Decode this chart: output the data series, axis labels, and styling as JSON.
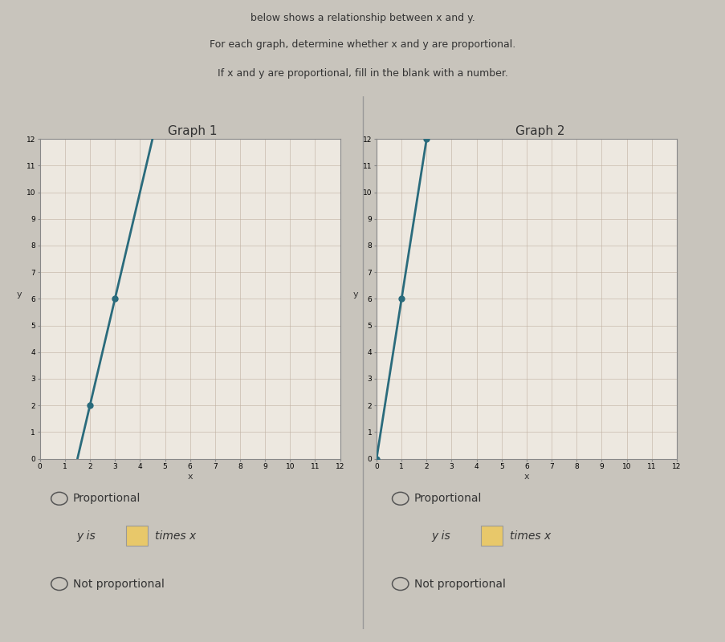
{
  "outer_bg": "#c8c4bc",
  "panel_bg": "#dedad4",
  "inner_bg": "#e8e4dc",
  "graph_bg": "#ede8e0",
  "grid_color": "#c0b0a0",
  "line_color": "#2a6b7c",
  "dot_color": "#2a6b7c",
  "header_text1": "below shows a relationship between x and y.",
  "header_text2": "For each graph, determine whether x and y are proportional.",
  "header_text3": "If x and y are proportional, fill in the blank with a number.",
  "graph1_title": "Graph 1",
  "graph2_title": "Graph 2",
  "graph1_points": [
    [
      2,
      2
    ],
    [
      3,
      6
    ]
  ],
  "graph2_points": [
    [
      0,
      0
    ],
    [
      1,
      6
    ],
    [
      2,
      12
    ]
  ],
  "xlim": [
    0,
    12
  ],
  "ylim": [
    0,
    12
  ],
  "tick_max": 12,
  "radio_color": "#555555",
  "text_color": "#333333",
  "box_color": "#e8c86a",
  "proportional_label": "Proportional",
  "not_proportional_label": "Not proportional",
  "y_is_label": "y is",
  "times_x_label": "times x",
  "border_color": "#aaaaaa",
  "divider_color": "#999999"
}
